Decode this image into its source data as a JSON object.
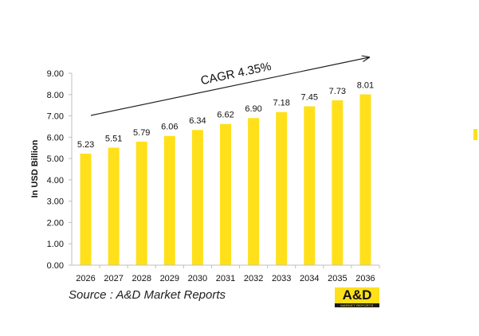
{
  "chart_data": {
    "type": "bar",
    "categories": [
      "2026",
      "2027",
      "2028",
      "2029",
      "2030",
      "2031",
      "2032",
      "2033",
      "2034",
      "2035",
      "2036"
    ],
    "values": [
      5.23,
      5.51,
      5.79,
      6.06,
      6.34,
      6.62,
      6.9,
      7.18,
      7.45,
      7.73,
      8.01
    ],
    "value_labels": [
      "5.23",
      "5.51",
      "5.79",
      "6.06",
      "6.34",
      "6.62",
      "6.90",
      "7.18",
      "7.45",
      "7.73",
      "8.01"
    ],
    "yticks": [
      "0.00",
      "1.00",
      "2.00",
      "3.00",
      "4.00",
      "5.00",
      "6.00",
      "7.00",
      "8.00",
      "9.00"
    ],
    "ylim": [
      0,
      9
    ],
    "ylabel": "In USD Billion",
    "xlabel": "",
    "annotation": "CAGR 4.35%",
    "bar_color": "#ffe01b",
    "grid": false
  },
  "source": "Source : A&D Market Reports",
  "logo": {
    "text": "A&D",
    "subtext": "MARKET REPORTS",
    "bg_color": "#ffe01b"
  }
}
